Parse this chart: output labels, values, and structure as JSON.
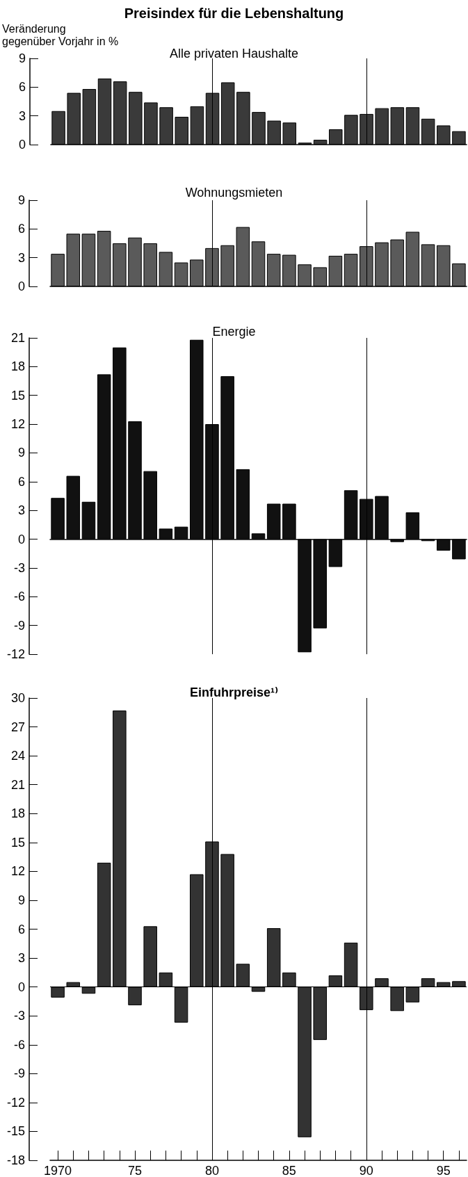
{
  "chart_data": [
    {
      "type": "bar",
      "title": "Preisindex für die Lebenshaltung",
      "subtitle": "Alle privaten Haushalte",
      "ylabel": "Veränderung\ngegenüber Vorjahr in %",
      "categories": [
        "1970",
        null,
        null,
        null,
        null,
        "75",
        null,
        null,
        null,
        null,
        "80",
        null,
        null,
        null,
        null,
        "85",
        null,
        null,
        null,
        null,
        "90",
        null,
        null,
        null,
        null,
        "95",
        null
      ],
      "values": [
        3.5,
        5.4,
        5.8,
        6.9,
        6.6,
        5.5,
        4.4,
        3.9,
        2.9,
        4.0,
        5.4,
        6.5,
        5.5,
        3.4,
        2.5,
        2.3,
        0.2,
        0.5,
        1.6,
        3.1,
        3.2,
        3.8,
        3.9,
        3.9,
        2.7,
        2.0,
        1.4
      ],
      "color": "#3a3a3a",
      "ylim": [
        0,
        9
      ],
      "yticks": [
        0,
        3,
        6,
        9
      ],
      "grid": false,
      "tick_labels": "y",
      "ref_lines": [
        {
          "axis": "x",
          "value": "80",
          "label": null
        },
        {
          "axis": "x",
          "value": "90",
          "label": null
        }
      ]
    },
    {
      "type": "bar",
      "title": "Wohnungsmieten",
      "categories": [
        "1970",
        null,
        null,
        null,
        null,
        "75",
        null,
        null,
        null,
        null,
        "80",
        null,
        null,
        null,
        null,
        "85",
        null,
        null,
        null,
        null,
        "90",
        null,
        null,
        null,
        null,
        "95",
        null
      ],
      "values": [
        3.4,
        5.5,
        5.5,
        5.8,
        4.5,
        5.1,
        4.5,
        3.6,
        2.5,
        2.8,
        4.0,
        4.3,
        6.2,
        4.7,
        3.4,
        3.3,
        2.3,
        2.0,
        3.2,
        3.4,
        4.2,
        4.6,
        4.9,
        5.7,
        4.4,
        4.3,
        2.4
      ],
      "color": "#5a5a5a",
      "ylim": [
        0,
        9
      ],
      "yticks": [
        0,
        3,
        6,
        9
      ],
      "grid": false,
      "tick_labels": "y",
      "ref_lines": [
        {
          "axis": "x",
          "value": "80",
          "label": null
        },
        {
          "axis": "x",
          "value": "90",
          "label": null
        }
      ]
    },
    {
      "type": "bar",
      "title": "Energie",
      "categories": [
        "1970",
        null,
        null,
        null,
        null,
        "75",
        null,
        null,
        null,
        null,
        "80",
        null,
        null,
        null,
        null,
        "85",
        null,
        null,
        null,
        null,
        "90",
        null,
        null,
        null,
        null,
        "95",
        null
      ],
      "values": [
        4.3,
        6.6,
        3.9,
        17.2,
        20.0,
        12.3,
        7.1,
        1.1,
        1.3,
        20.8,
        12.0,
        17.0,
        7.3,
        0.6,
        3.7,
        3.7,
        -11.8,
        -9.3,
        -2.9,
        5.1,
        4.2,
        4.5,
        -0.3,
        2.8,
        -0.2,
        -1.2,
        -2.1
      ],
      "color": "#111111",
      "ylim": [
        -12,
        21
      ],
      "yticks": [
        -12,
        -9,
        -6,
        -3,
        0,
        3,
        6,
        9,
        12,
        15,
        18,
        21
      ],
      "grid": false,
      "tick_labels": "y",
      "ref_lines": [
        {
          "axis": "x",
          "value": "80",
          "label": null
        },
        {
          "axis": "x",
          "value": "90",
          "label": null
        }
      ]
    },
    {
      "type": "bar",
      "title": "Einfuhrpreise¹⁾",
      "categories": [
        "1970",
        null,
        null,
        null,
        null,
        "75",
        null,
        null,
        null,
        null,
        "80",
        null,
        null,
        null,
        null,
        "85",
        null,
        null,
        null,
        null,
        "90",
        null,
        null,
        null,
        null,
        "95",
        null
      ],
      "values": [
        -1.1,
        0.5,
        -0.7,
        12.9,
        28.7,
        -1.9,
        6.3,
        1.5,
        -3.7,
        11.7,
        15.1,
        13.8,
        2.4,
        -0.5,
        6.1,
        1.5,
        -15.6,
        -5.5,
        1.2,
        4.6,
        -2.4,
        0.9,
        -2.5,
        -1.6,
        0.9,
        0.5,
        0.6
      ],
      "color": "#333333",
      "ylim": [
        -18,
        30
      ],
      "yticks": [
        -18,
        -15,
        -12,
        -9,
        -6,
        -3,
        0,
        3,
        6,
        9,
        12,
        15,
        18,
        21,
        24,
        27,
        30
      ],
      "grid": false,
      "ref_lines": [
        {
          "axis": "x",
          "value": "80",
          "label": null
        },
        {
          "axis": "x",
          "value": "90",
          "label": null
        },
        {
          "axis": "y",
          "value": 0,
          "label": null
        }
      ]
    }
  ]
}
